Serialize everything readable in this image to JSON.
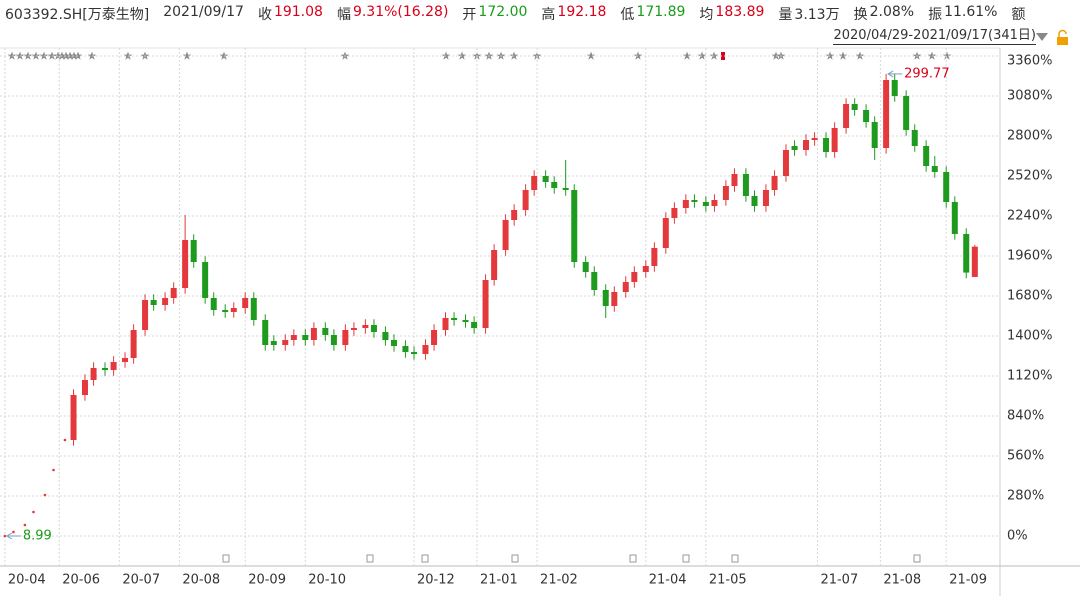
{
  "header": {
    "symbol": "603392.SH[万泰生物]",
    "date": "2021/09/17",
    "fields": [
      {
        "label": "收",
        "value": "191.08",
        "color": "#d9001b"
      },
      {
        "label": "幅",
        "value": "9.31%(16.28)",
        "color": "#d9001b"
      },
      {
        "label": "开",
        "value": "172.00",
        "color": "#1a9c1a"
      },
      {
        "label": "高",
        "value": "192.18",
        "color": "#d9001b"
      },
      {
        "label": "低",
        "value": "171.89",
        "color": "#1a9c1a"
      },
      {
        "label": "均",
        "value": "183.89",
        "color": "#d9001b"
      },
      {
        "label": "量",
        "value": "3.13万",
        "color": "#333333"
      },
      {
        "label": "换",
        "value": "2.08%",
        "color": "#333333"
      },
      {
        "label": "振",
        "value": "11.61%",
        "color": "#333333"
      },
      {
        "label": "额"
      }
    ]
  },
  "range": "2020/04/29-2021/09/17(341日)",
  "chart_data": {
    "type": "candlestick",
    "up_color": "#e4393c",
    "down_color": "#1e9b1e",
    "grid": true,
    "x": [
      0,
      3,
      7,
      10,
      14,
      17,
      21,
      24,
      28,
      31,
      35,
      38,
      42,
      45,
      49,
      52,
      56,
      59,
      63,
      66,
      70,
      73,
      77,
      80,
      84,
      87,
      91,
      94,
      98,
      101,
      105,
      108,
      112,
      115,
      119,
      122,
      126,
      129,
      133,
      136,
      140,
      143,
      147,
      150,
      154,
      157,
      161,
      164,
      168,
      171,
      175,
      178,
      182,
      185,
      189,
      192,
      196,
      199,
      203,
      206,
      210,
      213,
      217,
      220,
      224,
      227,
      231,
      234,
      238,
      241,
      245,
      248,
      252,
      255,
      259,
      262,
      266,
      269,
      273,
      276,
      280,
      283,
      287,
      290,
      294,
      297,
      301,
      304,
      308,
      311,
      315,
      318,
      322,
      325,
      329,
      332,
      336,
      339
    ],
    "open": [
      0,
      28,
      77,
      168,
      287,
      462,
      672,
      672,
      987,
      1092,
      1176,
      1162,
      1218,
      1246,
      1442,
      1652,
      1617,
      1666,
      1736,
      2072,
      1918,
      1666,
      1582,
      1568,
      1596,
      1666,
      1512,
      1365,
      1337,
      1372,
      1407,
      1372,
      1456,
      1407,
      1337,
      1442,
      1456,
      1477,
      1428,
      1372,
      1330,
      1288,
      1274,
      1337,
      1442,
      1526,
      1512,
      1498,
      1456,
      1792,
      2002,
      2212,
      2282,
      2422,
      2520,
      2478,
      2436,
      2422,
      1918,
      1848,
      1722,
      1610,
      1708,
      1778,
      1848,
      1890,
      2016,
      2226,
      2296,
      2352,
      2338,
      2310,
      2352,
      2450,
      2534,
      2380,
      2310,
      2422,
      2520,
      2730,
      2702,
      2772,
      2786,
      2688,
      2856,
      3024,
      2982,
      2898,
      2716,
      3192,
      3080,
      2842,
      2730,
      2590,
      2548,
      2338,
      2114,
      1813.3
    ],
    "high": [
      0,
      28,
      77,
      168,
      287,
      462,
      672,
      1027,
      1132,
      1216,
      1216,
      1258,
      1286,
      1482,
      1692,
      1692,
      1706,
      1776,
      2247,
      2112,
      1958,
      1706,
      1622,
      1636,
      1706,
      1706,
      1552,
      1405,
      1412,
      1447,
      1447,
      1496,
      1496,
      1447,
      1482,
      1496,
      1517,
      1517,
      1468,
      1412,
      1370,
      1328,
      1377,
      1482,
      1566,
      1566,
      1552,
      1538,
      1832,
      2042,
      2252,
      2322,
      2462,
      2560,
      2560,
      2518,
      2632,
      2462,
      1958,
      1888,
      1762,
      1748,
      1818,
      1888,
      1930,
      2056,
      2266,
      2336,
      2392,
      2392,
      2378,
      2392,
      2490,
      2574,
      2574,
      2420,
      2462,
      2560,
      2742,
      2770,
      2812,
      2826,
      2826,
      2896,
      3064,
      3064,
      3022,
      2938,
      3234.5,
      3232,
      3120,
      2882,
      2770,
      2660,
      2588,
      2378,
      2154,
      2037.7
    ],
    "low": [
      0,
      28,
      77,
      168,
      287,
      462,
      672,
      632,
      947,
      1052,
      1122,
      1122,
      1178,
      1206,
      1402,
      1577,
      1577,
      1626,
      1696,
      1878,
      1626,
      1542,
      1528,
      1528,
      1556,
      1472,
      1297,
      1297,
      1297,
      1332,
      1332,
      1332,
      1367,
      1297,
      1297,
      1402,
      1416,
      1388,
      1332,
      1290,
      1248,
      1234,
      1234,
      1297,
      1402,
      1472,
      1458,
      1416,
      1416,
      1752,
      1962,
      2172,
      2242,
      2382,
      2438,
      2396,
      2382,
      1878,
      1808,
      1682,
      1526,
      1570,
      1668,
      1738,
      1808,
      1850,
      1976,
      2186,
      2256,
      2298,
      2270,
      2270,
      2312,
      2410,
      2340,
      2270,
      2270,
      2382,
      2480,
      2662,
      2662,
      2732,
      2648,
      2648,
      2816,
      2942,
      2858,
      2632,
      2676,
      3040,
      2802,
      2690,
      2550,
      2508,
      2298,
      2074,
      1804,
      1812.0
    ],
    "close": [
      0,
      28,
      77,
      168,
      287,
      462,
      672,
      987,
      1092,
      1176,
      1162,
      1218,
      1246,
      1442,
      1652,
      1617,
      1666,
      1736,
      2072,
      1918,
      1666,
      1582,
      1568,
      1596,
      1666,
      1512,
      1337,
      1337,
      1372,
      1407,
      1372,
      1456,
      1407,
      1337,
      1442,
      1456,
      1477,
      1428,
      1372,
      1330,
      1288,
      1274,
      1337,
      1442,
      1526,
      1512,
      1498,
      1456,
      1792,
      2002,
      2212,
      2282,
      2422,
      2520,
      2478,
      2436,
      2422,
      1918,
      1848,
      1722,
      1610,
      1708,
      1778,
      1848,
      1890,
      2016,
      2226,
      2296,
      2352,
      2338,
      2310,
      2352,
      2450,
      2534,
      2380,
      2310,
      2422,
      2520,
      2702,
      2702,
      2772,
      2786,
      2688,
      2856,
      3024,
      2982,
      2898,
      2716,
      3192,
      3080,
      2842,
      2730,
      2590,
      2548,
      2338,
      2114,
      1844,
      2025.5
    ],
    "xlim": [
      -1.7,
      347.8
    ],
    "ylim": [
      -210,
      3416
    ],
    "xticks": [
      {
        "value": 0,
        "label": "20-04"
      },
      {
        "value": 19,
        "label": "20-06"
      },
      {
        "value": 40,
        "label": "20-07"
      },
      {
        "value": 61,
        "label": "20-08"
      },
      {
        "value": 84,
        "label": "20-09"
      },
      {
        "value": 105,
        "label": "20-10"
      },
      {
        "value": 143,
        "label": "20-12"
      },
      {
        "value": 165,
        "label": "21-01"
      },
      {
        "value": 186,
        "label": "21-02"
      },
      {
        "value": 224,
        "label": "21-04"
      },
      {
        "value": 245,
        "label": "21-05"
      },
      {
        "value": 284,
        "label": "21-07"
      },
      {
        "value": 306,
        "label": "21-08"
      },
      {
        "value": 329,
        "label": "21-09"
      }
    ],
    "yticks": [
      {
        "value": 3360,
        "label": "3360%"
      },
      {
        "value": 3080,
        "label": "3080%"
      },
      {
        "value": 2800,
        "label": "2800%"
      },
      {
        "value": 2520,
        "label": "2520%"
      },
      {
        "value": 2240,
        "label": "2240%"
      },
      {
        "value": 1960,
        "label": "1960%"
      },
      {
        "value": 1680,
        "label": "1680%"
      },
      {
        "value": 1400,
        "label": "1400%"
      },
      {
        "value": 1120,
        "label": "1120%"
      },
      {
        "value": 840,
        "label": "840%"
      },
      {
        "value": 560,
        "label": "560%"
      },
      {
        "value": 280,
        "label": "280%"
      },
      {
        "value": 0,
        "label": "0%"
      }
    ],
    "annotations": [
      {
        "text": "299.77",
        "x": 308,
        "y": 3234.5,
        "color": "#d9001b"
      },
      {
        "text": "8.99",
        "x": 0,
        "y": 0,
        "color": "#1a9c1a"
      }
    ]
  }
}
